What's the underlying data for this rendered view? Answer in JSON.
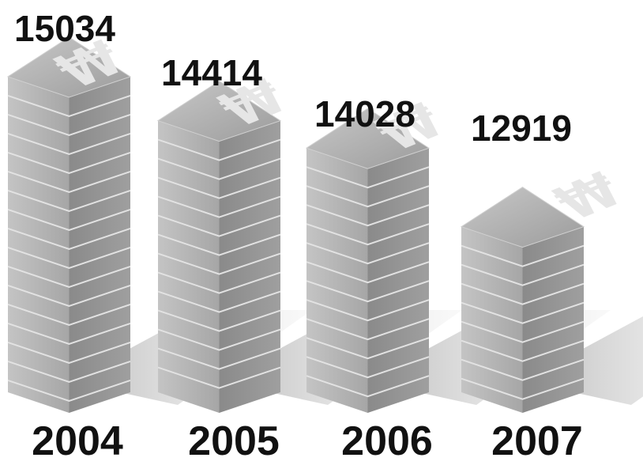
{
  "chart_data": {
    "type": "bar",
    "categories": [
      "2004",
      "2005",
      "2006",
      "2007"
    ],
    "values": [
      15034,
      14414,
      14028,
      12919
    ],
    "value_labels": [
      "15034",
      "14414",
      "14028",
      "12919"
    ],
    "bar_symbol": "₩",
    "title": "",
    "xlabel": "",
    "ylabel": "",
    "colors": {
      "top": "#a9a9a9",
      "top_highlight": "#c9c9c9",
      "front": "#b7b7b7",
      "side": "#8e8e8e",
      "seam": "#e2e2e2",
      "shadow": "#bdbdbd",
      "symbol": "#e6e6e6"
    }
  }
}
